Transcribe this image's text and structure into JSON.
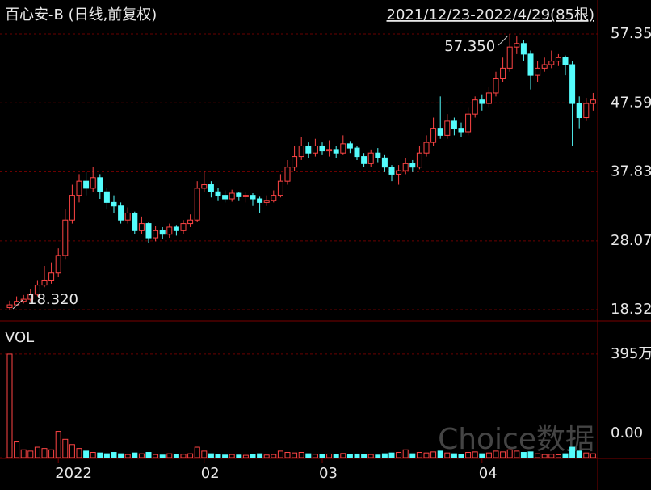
{
  "chart_data": {
    "type": "candlestick",
    "title": "百心安-B (日线,前复权)",
    "subtitle": "2021/12/23-2022/4/29(85根)",
    "volume_label": "VOL",
    "watermark": "Choice数据",
    "categories": [
      null,
      null,
      null,
      null,
      null,
      null,
      null,
      "2022",
      null,
      null,
      null,
      null,
      null,
      null,
      null,
      null,
      null,
      null,
      null,
      null,
      null,
      null,
      null,
      null,
      null,
      null,
      null,
      null,
      "02",
      null,
      null,
      null,
      null,
      null,
      null,
      null,
      null,
      null,
      null,
      null,
      null,
      null,
      null,
      null,
      null,
      "03",
      null,
      null,
      null,
      null,
      null,
      null,
      null,
      null,
      null,
      null,
      null,
      null,
      null,
      null,
      null,
      null,
      null,
      null,
      null,
      null,
      null,
      null,
      "04",
      null,
      null,
      null,
      null,
      null,
      null,
      null,
      null,
      null,
      null,
      null,
      null,
      null,
      null,
      null,
      null
    ],
    "open": [
      18.6,
      19.0,
      19.5,
      19.8,
      20.5,
      21.8,
      22.5,
      23.5,
      26.0,
      31.0,
      34.5,
      36.5,
      35.5,
      37.0,
      35.0,
      33.5,
      33.0,
      31.0,
      32.0,
      29.5,
      30.5,
      28.5,
      29.5,
      29.0,
      30.0,
      29.5,
      30.5,
      31.0,
      35.5,
      36.0,
      35.0,
      34.5,
      34.0,
      34.8,
      34.3,
      34.5,
      34.0,
      33.5,
      33.8,
      34.5,
      36.5,
      38.5,
      40.0,
      41.5,
      40.5,
      41.5,
      40.8,
      41.0,
      40.5,
      41.8,
      41.2,
      40.0,
      39.0,
      40.5,
      39.8,
      38.5,
      37.5,
      38.0,
      39.0,
      38.5,
      40.5,
      42.0,
      44.0,
      43.0,
      45.0,
      44.0,
      43.5,
      46.0,
      48.0,
      47.5,
      49.0,
      51.0,
      52.5,
      55.5,
      56.0,
      54.5,
      51.5,
      52.5,
      53.0,
      53.5,
      54.0,
      53.0,
      47.5,
      45.5,
      47.5
    ],
    "high": [
      19.6,
      20.2,
      20.4,
      21.2,
      22.5,
      24.5,
      25.0,
      27.0,
      32.5,
      36.0,
      37.5,
      37.8,
      38.5,
      37.5,
      35.5,
      34.5,
      33.5,
      32.8,
      32.2,
      31.5,
      30.8,
      30.2,
      30.0,
      30.5,
      30.3,
      31.0,
      31.8,
      36.5,
      38.0,
      36.5,
      35.5,
      35.2,
      35.3,
      35.0,
      35.0,
      34.8,
      34.3,
      34.5,
      35.2,
      37.5,
      39.5,
      41.5,
      42.8,
      42.0,
      42.5,
      42.0,
      42.3,
      41.5,
      43.0,
      42.2,
      41.5,
      40.5,
      41.0,
      41.2,
      40.2,
      38.8,
      38.8,
      39.8,
      39.5,
      41.5,
      43.0,
      45.5,
      48.5,
      46.0,
      45.5,
      44.8,
      47.0,
      48.5,
      48.8,
      49.8,
      52.0,
      54.0,
      57.35,
      57.0,
      56.5,
      55.0,
      53.5,
      54.0,
      55.0,
      54.5,
      54.3,
      53.5,
      48.5,
      48.3,
      49.0
    ],
    "low": [
      18.32,
      18.8,
      19.2,
      19.5,
      20.2,
      21.5,
      22.0,
      23.0,
      25.5,
      30.5,
      33.5,
      34.5,
      35.0,
      34.0,
      32.5,
      32.0,
      30.5,
      30.5,
      29.0,
      29.0,
      27.8,
      28.0,
      28.3,
      28.5,
      28.8,
      29.0,
      30.0,
      30.8,
      35.0,
      34.2,
      33.8,
      33.5,
      33.6,
      33.8,
      33.5,
      33.0,
      32.0,
      33.0,
      33.5,
      34.2,
      36.0,
      38.0,
      39.5,
      39.8,
      40.0,
      40.2,
      40.0,
      39.8,
      40.2,
      40.5,
      39.5,
      38.5,
      38.5,
      39.2,
      37.8,
      36.5,
      36.0,
      37.5,
      37.8,
      38.2,
      40.0,
      41.5,
      42.5,
      42.5,
      43.0,
      42.8,
      43.0,
      45.5,
      46.5,
      47.0,
      48.5,
      50.5,
      52.0,
      54.5,
      53.5,
      49.5,
      50.5,
      52.0,
      52.5,
      52.8,
      51.5,
      41.5,
      44.0,
      45.0,
      46.5
    ],
    "close": [
      19.0,
      19.5,
      19.8,
      20.5,
      21.8,
      22.5,
      23.5,
      26.0,
      31.0,
      34.5,
      36.5,
      35.5,
      37.0,
      35.0,
      33.5,
      33.0,
      31.0,
      32.0,
      29.5,
      30.5,
      28.5,
      29.5,
      29.0,
      30.0,
      29.5,
      30.5,
      31.0,
      35.5,
      36.0,
      35.0,
      34.5,
      34.0,
      34.8,
      34.3,
      34.5,
      34.0,
      33.5,
      33.8,
      34.5,
      36.5,
      38.5,
      40.0,
      41.5,
      40.5,
      41.5,
      40.8,
      41.0,
      40.5,
      41.8,
      41.2,
      40.0,
      39.0,
      40.5,
      39.8,
      38.5,
      37.5,
      38.0,
      39.0,
      38.5,
      40.5,
      42.0,
      44.0,
      43.0,
      45.0,
      44.0,
      43.5,
      46.0,
      48.0,
      47.5,
      49.0,
      51.0,
      52.5,
      55.5,
      56.0,
      54.5,
      51.5,
      52.5,
      53.0,
      53.5,
      54.0,
      53.0,
      47.5,
      45.5,
      47.5,
      48.0
    ],
    "volume": [
      3950000,
      600000,
      300000,
      250000,
      400000,
      350000,
      300000,
      1000000,
      700000,
      500000,
      350000,
      250000,
      200000,
      180000,
      150000,
      200000,
      150000,
      120000,
      180000,
      150000,
      200000,
      120000,
      100000,
      150000,
      120000,
      130000,
      150000,
      400000,
      250000,
      150000,
      120000,
      100000,
      120000,
      100000,
      90000,
      110000,
      150000,
      100000,
      120000,
      250000,
      200000,
      180000,
      200000,
      150000,
      130000,
      120000,
      140000,
      110000,
      160000,
      120000,
      140000,
      130000,
      120000,
      100000,
      150000,
      180000,
      200000,
      300000,
      150000,
      200000,
      180000,
      220000,
      250000,
      180000,
      150000,
      120000,
      200000,
      220000,
      150000,
      180000,
      250000,
      220000,
      300000,
      250000,
      200000,
      220000,
      150000,
      120000,
      130000,
      110000,
      150000,
      400000,
      250000,
      180000,
      150000
    ],
    "max_label": {
      "value": 57.35,
      "label": "57.350"
    },
    "min_label": {
      "value": 18.32,
      "label": "18.320"
    },
    "ylim": [
      18.32,
      57.35
    ],
    "yticks": [
      57.35,
      47.59,
      37.83,
      28.07,
      18.32
    ],
    "vlim": [
      0,
      5120000
    ],
    "vticks": [
      {
        "value": 3950000,
        "label": "395万"
      },
      {
        "value": 0,
        "label": "0.00"
      }
    ],
    "up_color": "#ff4444",
    "down_color": "#54fcfc",
    "grid": true
  }
}
